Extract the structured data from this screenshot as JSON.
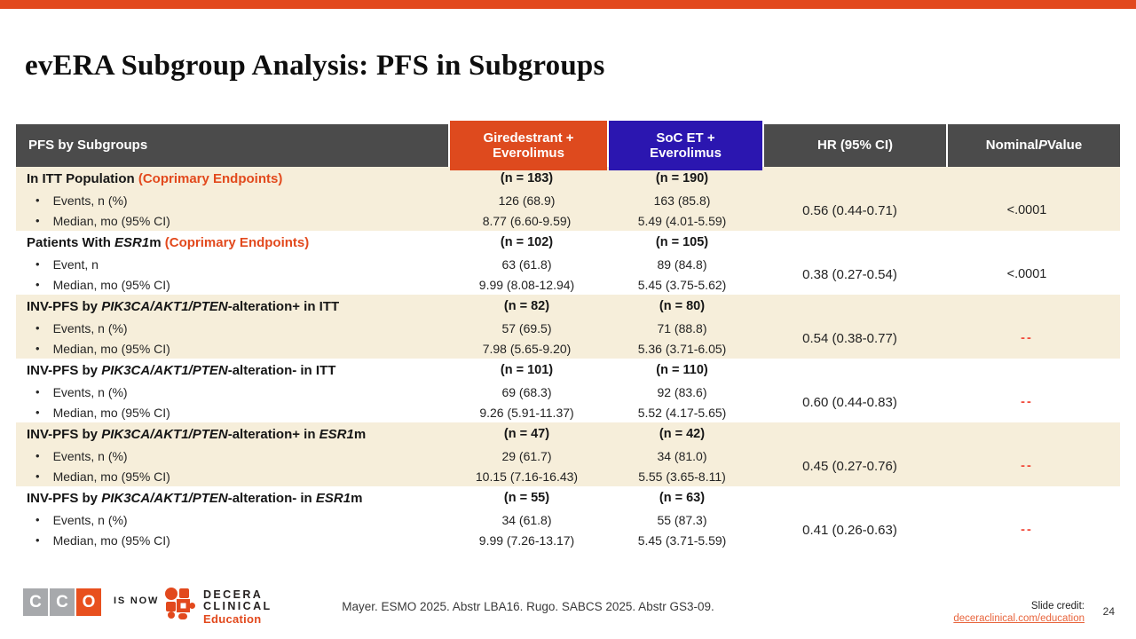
{
  "slide": {
    "title": "evERA Subgroup Analysis: PFS in Subgroups",
    "page_number": "24"
  },
  "colors": {
    "accent_orange": "#E2491D",
    "header_gray": "#4B4B4B",
    "header_orange": "#DE4A1E",
    "header_blue": "#2B16B0",
    "row_band_beige": "#F6EEDA",
    "dash_red": "#F14B3C",
    "link_orange": "#E8643C"
  },
  "table": {
    "col1_header": "PFS by Subgroups",
    "col2_header": "Giredestrant + Everolimus",
    "col3_header": "SoC ET + Everolimus",
    "col4_header": "HR (95% CI)",
    "col5_header": {
      "pre": "Nominal ",
      "italic": "P",
      "post": " Value"
    },
    "groups": [
      {
        "band": true,
        "title": [
          {
            "t": "In ITT Population "
          },
          {
            "t": "(Coprimary Endpoints)",
            "a": true
          }
        ],
        "labels": [
          "Events, n (%)",
          "Median, mo (95% CI)"
        ],
        "giredestrant": {
          "n": "(n = 183)",
          "v1": "126 (68.9)",
          "v2": "8.77 (6.60-9.59)"
        },
        "soc": {
          "n": "(n = 190)",
          "v1": "163 (85.8)",
          "v2": "5.49 (4.01-5.59)"
        },
        "hr": "0.56 (0.44-0.71)",
        "p": "<.0001",
        "p_dash": false
      },
      {
        "band": false,
        "title": [
          {
            "t": "Patients With "
          },
          {
            "t": "ESR1",
            "i": true
          },
          {
            "t": "m "
          },
          {
            "t": "(Coprimary Endpoints)",
            "a": true
          }
        ],
        "labels": [
          "Event, n",
          "Median, mo (95% CI)"
        ],
        "giredestrant": {
          "n": "(n = 102)",
          "v1": "63 (61.8)",
          "v2": "9.99 (8.08-12.94)"
        },
        "soc": {
          "n": "(n = 105)",
          "v1": "89 (84.8)",
          "v2": "5.45 (3.75-5.62)"
        },
        "hr": "0.38 (0.27-0.54)",
        "p": "<.0001",
        "p_dash": false
      },
      {
        "band": true,
        "title": [
          {
            "t": "INV-PFS by "
          },
          {
            "t": "PIK3CA/AKT1/PTEN",
            "i": true
          },
          {
            "t": "-alteration+ in ITT"
          }
        ],
        "labels": [
          "Events, n (%)",
          "Median, mo (95% CI)"
        ],
        "giredestrant": {
          "n": "(n = 82)",
          "v1": "57 (69.5)",
          "v2": "7.98 (5.65-9.20)"
        },
        "soc": {
          "n": "(n = 80)",
          "v1": "71 (88.8)",
          "v2": "5.36 (3.71-6.05)"
        },
        "hr": "0.54 (0.38-0.77)",
        "p": "--",
        "p_dash": true
      },
      {
        "band": false,
        "title": [
          {
            "t": "INV-PFS by "
          },
          {
            "t": "PIK3CA/AKT1/PTEN",
            "i": true
          },
          {
            "t": "-alteration- in ITT"
          }
        ],
        "labels": [
          "Events, n (%)",
          "Median, mo (95% CI)"
        ],
        "giredestrant": {
          "n": "(n = 101)",
          "v1": "69 (68.3)",
          "v2": "9.26 (5.91-11.37)"
        },
        "soc": {
          "n": "(n = 110)",
          "v1": "92 (83.6)",
          "v2": "5.52 (4.17-5.65)"
        },
        "hr": "0.60 (0.44-0.83)",
        "p": "--",
        "p_dash": true
      },
      {
        "band": true,
        "title": [
          {
            "t": "INV-PFS by "
          },
          {
            "t": "PIK3CA/AKT1/PTEN",
            "i": true
          },
          {
            "t": "-alteration+ in "
          },
          {
            "t": "ESR1",
            "i": true
          },
          {
            "t": "m"
          }
        ],
        "labels": [
          "Events, n (%)",
          "Median, mo (95% CI)"
        ],
        "giredestrant": {
          "n": "(n = 47)",
          "v1": "29 (61.7)",
          "v2": "10.15 (7.16-16.43)"
        },
        "soc": {
          "n": "(n = 42)",
          "v1": "34 (81.0)",
          "v2": "5.55 (3.65-8.11)"
        },
        "hr": "0.45 (0.27-0.76)",
        "p": "--",
        "p_dash": true
      },
      {
        "band": false,
        "title": [
          {
            "t": "INV-PFS by "
          },
          {
            "t": "PIK3CA/AKT1/PTEN",
            "i": true
          },
          {
            "t": "-alteration- in "
          },
          {
            "t": "ESR1",
            "i": true
          },
          {
            "t": "m"
          }
        ],
        "labels": [
          "Events, n (%)",
          "Median, mo (95% CI)"
        ],
        "giredestrant": {
          "n": "(n = 55)",
          "v1": "34 (61.8)",
          "v2": "9.99 (7.26-13.17)"
        },
        "soc": {
          "n": "(n = 63)",
          "v1": "55 (87.3)",
          "v2": "5.45 (3.71-5.59)"
        },
        "hr": "0.41 (0.26-0.63)",
        "p": "--",
        "p_dash": true
      }
    ]
  },
  "footer": {
    "cco_letters": [
      "C",
      "C",
      "O"
    ],
    "is_now": "IS NOW",
    "decera_line1": "DECERA",
    "decera_line2": "CLINICAL",
    "decera_line3": "Education",
    "citation": "Mayer. ESMO 2025. Abstr LBA16. Rugo. SABCS 2025. Abstr GS3-09.",
    "credit_label": "Slide credit:",
    "credit_link": "deceraclinical.com/education"
  }
}
